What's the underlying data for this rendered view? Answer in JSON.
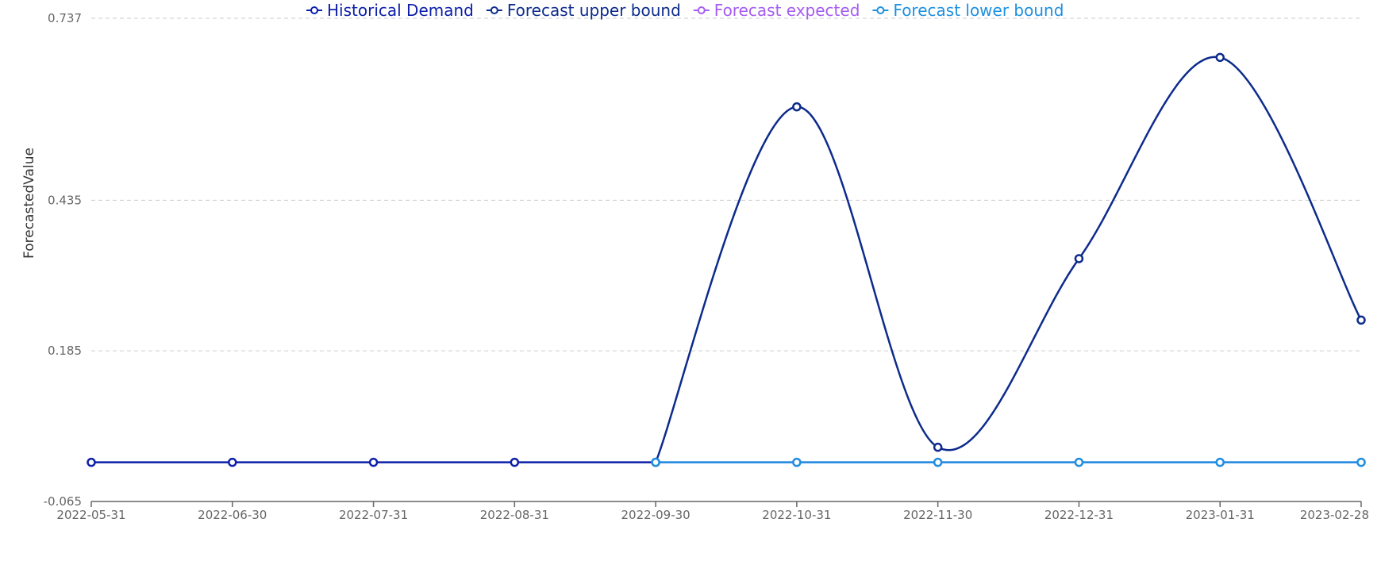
{
  "chart_data": {
    "type": "line",
    "title": "",
    "xlabel": "",
    "ylabel": "ForecastedValue",
    "x": [
      "2022-05-31",
      "2022-06-30",
      "2022-07-31",
      "2022-08-31",
      "2022-09-30",
      "2022-10-31",
      "2022-11-30",
      "2022-12-31",
      "2023-01-31",
      "2023-02-28"
    ],
    "ylim": [
      -0.065,
      0.737
    ],
    "yticks": [
      "0.737",
      "0.435",
      "0.185",
      "-0.065"
    ],
    "grid": true,
    "legend_position": "top",
    "series": [
      {
        "name": "Historical Demand",
        "color": "#0c1fa8",
        "values": [
          0,
          0,
          0,
          0,
          0,
          null,
          null,
          null,
          null,
          null
        ]
      },
      {
        "name": "Forecast upper bound",
        "color": "#0d2b8c",
        "values": [
          null,
          null,
          null,
          null,
          0,
          0.59,
          0.025,
          0.338,
          0.672,
          0.236
        ]
      },
      {
        "name": "Forecast expected",
        "color": "#a55cf0",
        "values": [
          null,
          null,
          null,
          null,
          0,
          0,
          0,
          0,
          0,
          0
        ]
      },
      {
        "name": "Forecast lower bound",
        "color": "#1e90e0",
        "values": [
          null,
          null,
          null,
          null,
          0,
          0,
          0,
          0,
          0,
          0
        ]
      }
    ]
  }
}
